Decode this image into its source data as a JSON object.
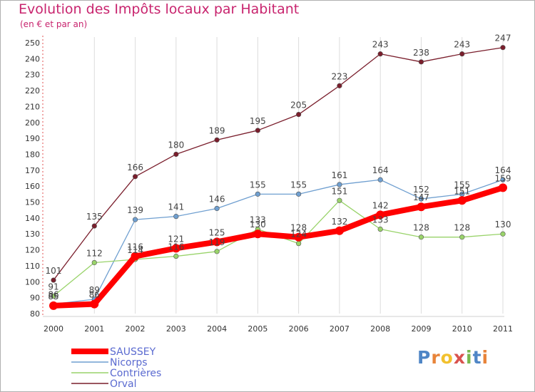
{
  "chart_data": {
    "type": "line",
    "title": "Evolution des Impôts locaux par Habitant",
    "subtitle": "(en € et par an)",
    "x": [
      "2000",
      "2001",
      "2002",
      "2003",
      "2004",
      "2005",
      "2006",
      "2007",
      "2008",
      "2009",
      "2010",
      "2011"
    ],
    "yticks": [
      80,
      90,
      100,
      110,
      120,
      130,
      140,
      150,
      160,
      170,
      180,
      190,
      200,
      210,
      220,
      230,
      240,
      250
    ],
    "ylim": [
      80,
      250
    ],
    "grid": "vertical",
    "legend_position": "bottom-left",
    "series": [
      {
        "name": "Orval",
        "color": "#7a1e2c",
        "values": [
          101,
          135,
          166,
          180,
          189,
          195,
          205,
          223,
          243,
          238,
          243,
          247
        ]
      },
      {
        "name": "Nicorps",
        "color": "#6f9fd0",
        "values": [
          86,
          89,
          139,
          141,
          146,
          155,
          155,
          161,
          164,
          152,
          155,
          164
        ]
      },
      {
        "name": "Contrières",
        "color": "#99d36a",
        "values": [
          91,
          112,
          114,
          116,
          119,
          133,
          124,
          151,
          133,
          128,
          128,
          130
        ]
      },
      {
        "name": "SAUSSEY",
        "color": "#ff0000",
        "values": [
          85,
          86,
          116,
          121,
          125,
          130,
          128,
          132,
          142,
          147,
          151,
          159
        ]
      }
    ]
  },
  "legend": [
    "SAUSSEY",
    "Nicorps",
    "Contrières",
    "Orval"
  ],
  "logo": {
    "text": "Proxiti",
    "colors": [
      "#4f86c6",
      "#e8843a",
      "#f2c12e",
      "#d9534f",
      "#79b84f",
      "#4f86c6",
      "#e8843a"
    ]
  }
}
